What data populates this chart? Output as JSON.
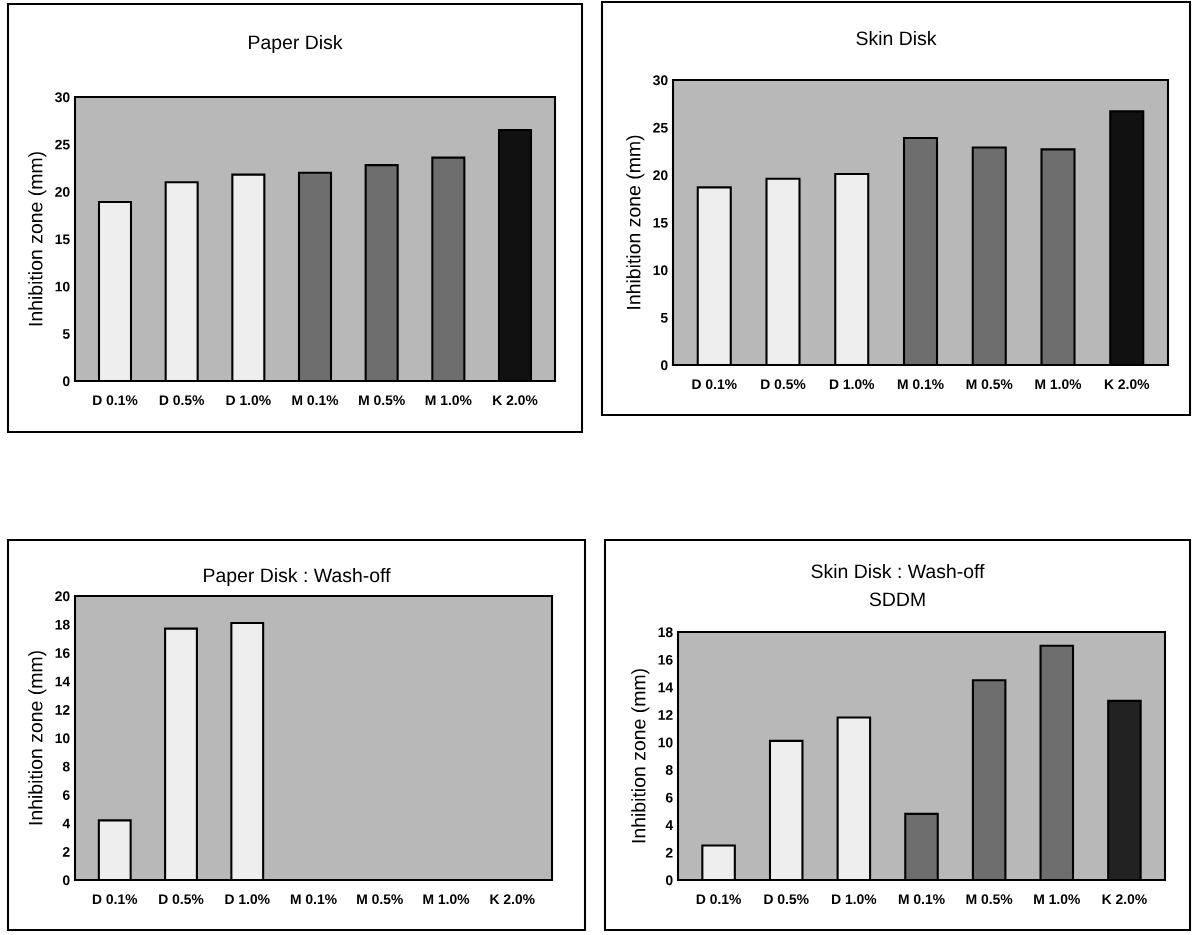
{
  "chart_data": [
    {
      "type": "bar",
      "title": "Paper Disk",
      "ylabel": "Inhibition zone (mm)",
      "categories": [
        "D 0.1%",
        "D 0.5%",
        "D 1.0%",
        "M 0.1%",
        "M 0.5%",
        "M 1.0%",
        "K 2.0%"
      ],
      "values": [
        18.9,
        21.0,
        21.8,
        22.0,
        22.8,
        23.6,
        26.5
      ],
      "colors": [
        "#eeeeee",
        "#eeeeee",
        "#eeeeee",
        "#6e6e6e",
        "#6e6e6e",
        "#6e6e6e",
        "#111111"
      ],
      "ylim": [
        0,
        30
      ],
      "yticks": [
        0,
        5,
        10,
        15,
        20,
        25,
        30
      ],
      "grid": false,
      "legend": false
    },
    {
      "type": "bar",
      "title": "Skin Disk",
      "ylabel": "Inhibition zone (mm)",
      "categories": [
        "D 0.1%",
        "D 0.5%",
        "D 1.0%",
        "M 0.1%",
        "M 0.5%",
        "M 1.0%",
        "K 2.0%"
      ],
      "values": [
        18.7,
        19.6,
        20.1,
        23.9,
        22.9,
        22.7,
        26.7
      ],
      "colors": [
        "#eeeeee",
        "#eeeeee",
        "#eeeeee",
        "#6e6e6e",
        "#6e6e6e",
        "#6e6e6e",
        "#111111"
      ],
      "ylim": [
        0,
        30
      ],
      "yticks": [
        0,
        5,
        10,
        15,
        20,
        25,
        30
      ],
      "grid": false,
      "legend": false
    },
    {
      "type": "bar",
      "title": "Paper Disk : Wash-off",
      "ylabel": "Inhibition zone (mm)",
      "categories": [
        "D 0.1%",
        "D 0.5%",
        "D 1.0%",
        "M 0.1%",
        "M 0.5%",
        "M 1.0%",
        "K 2.0%"
      ],
      "values": [
        4.2,
        17.7,
        18.1,
        0,
        0,
        0,
        0
      ],
      "colors": [
        "#eeeeee",
        "#eeeeee",
        "#eeeeee",
        null,
        null,
        null,
        null
      ],
      "ylim": [
        0,
        20
      ],
      "yticks": [
        0,
        2,
        4,
        6,
        8,
        10,
        12,
        14,
        16,
        18,
        20
      ],
      "grid": false,
      "legend": false
    },
    {
      "type": "bar",
      "title": "Skin Disk : Wash-off",
      "subtitle": "SDDM",
      "ylabel": "Inhibition zone (mm)",
      "categories": [
        "D 0.1%",
        "D 0.5%",
        "D 1.0%",
        "M 0.1%",
        "M 0.5%",
        "M 1.0%",
        "K 2.0%"
      ],
      "values": [
        2.5,
        10.1,
        11.8,
        4.8,
        14.5,
        17.0,
        13.0
      ],
      "colors": [
        "#eeeeee",
        "#eeeeee",
        "#eeeeee",
        "#6e6e6e",
        "#6e6e6e",
        "#6e6e6e",
        "#222222"
      ],
      "ylim": [
        0,
        18
      ],
      "yticks": [
        0,
        2,
        4,
        6,
        8,
        10,
        12,
        14,
        16,
        18
      ],
      "grid": false,
      "legend": false
    }
  ]
}
